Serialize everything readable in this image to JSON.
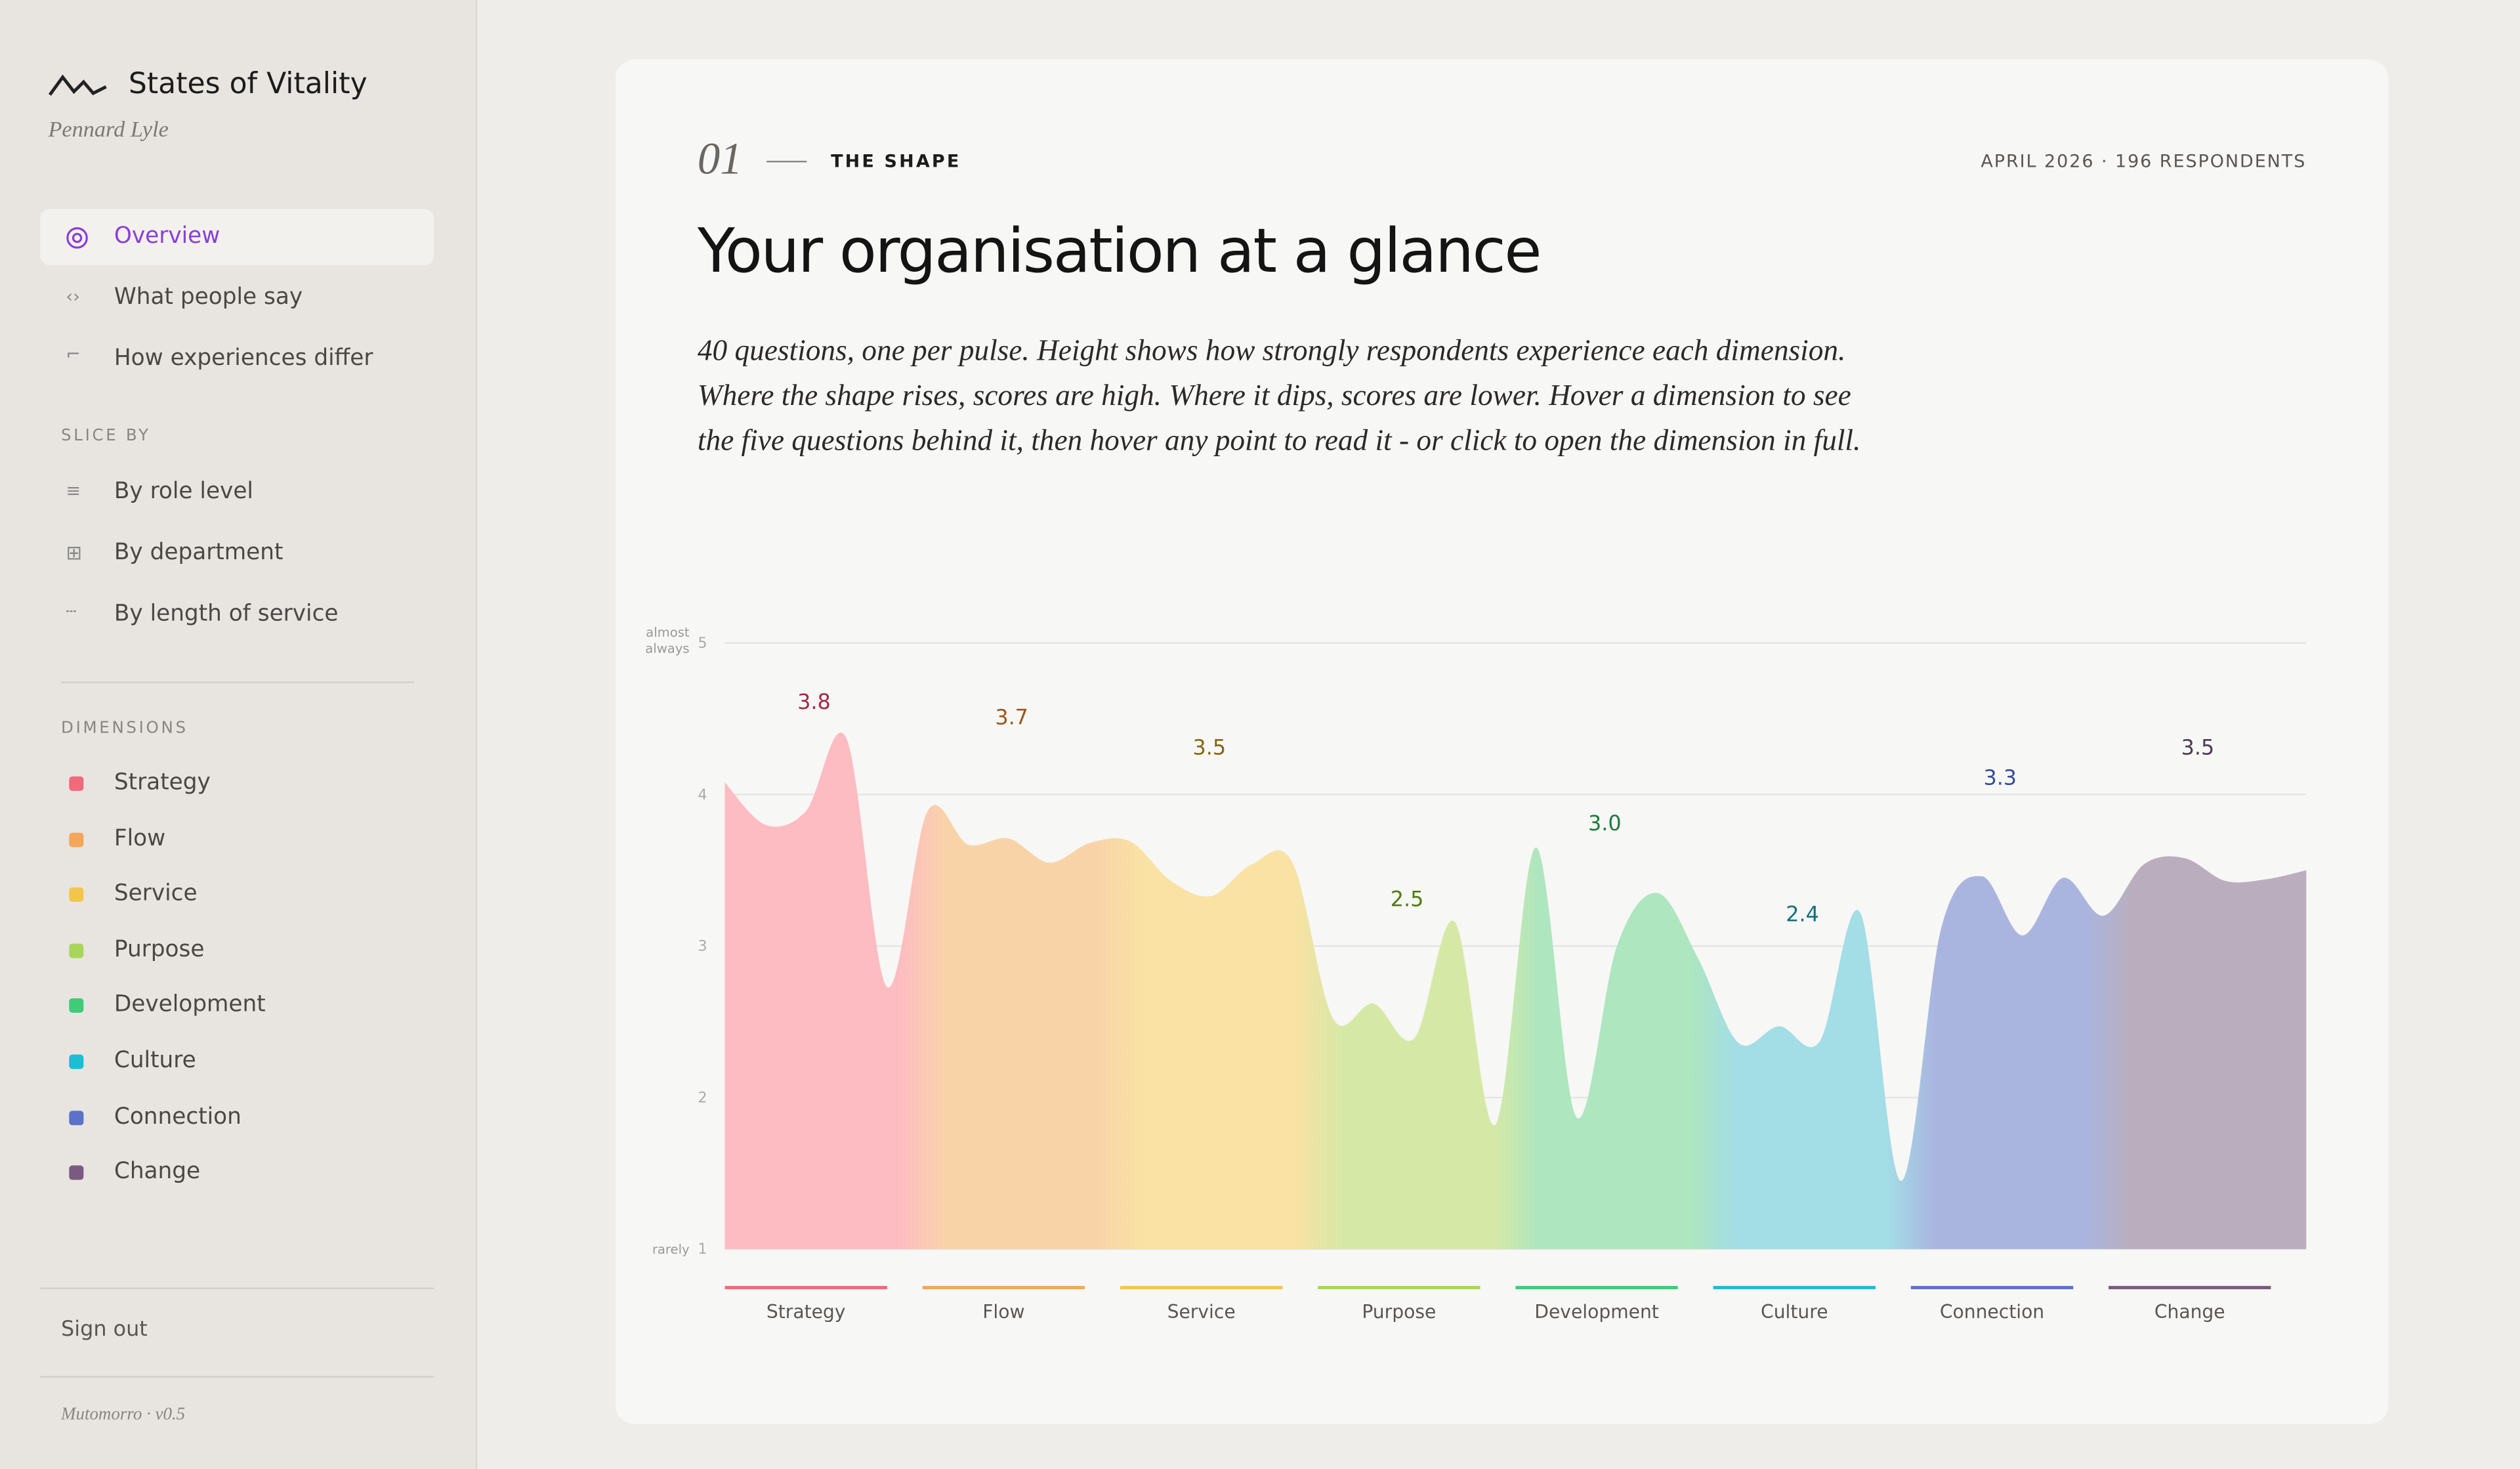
{
  "app": {
    "brand": "States of Vitality",
    "author": "Pennard Lyle",
    "nav": [
      "Overview",
      "What people say",
      "How experiences differ"
    ],
    "slice_header": "SLICE BY",
    "slices": [
      "By role level",
      "By department",
      "By length of service"
    ],
    "dimensions_header": "DIMENSIONS",
    "sign_out": "Sign out",
    "version": "Mutomorro · v0.5"
  },
  "card": {
    "number": "01",
    "kicker": "THE SHAPE",
    "meta": "APRIL 2026 · 196 RESPONDENTS",
    "title": "Your organisation at a glance",
    "description": "40 questions, one per pulse. Height shows how strongly respondents experience each dimension. Where the shape rises, scores are high. Where it dips, scores are lower. Hover a dimension to see the five questions behind it, then hover any point to read it - or click to open the dimension in full."
  },
  "chart_data": {
    "type": "area",
    "ylim": [
      1,
      5
    ],
    "yticks": [
      1,
      2,
      3,
      4,
      5
    ],
    "y_top_label": "almost always",
    "y_bottom_label": "rarely",
    "grid": true,
    "series": [
      {
        "name": "Strategy",
        "color": "#f06a7a",
        "fill": "#fcbcc2",
        "label_color": "#a0294a",
        "values": [
          4.08,
          3.8,
          3.89,
          4.37,
          2.73
        ],
        "average": 3.8,
        "average_label": "3.8"
      },
      {
        "name": "Flow",
        "color": "#f4a65a",
        "fill": "#f9d3a8",
        "label_color": "#9a561a",
        "values": [
          3.89,
          3.67,
          3.71,
          3.55,
          3.68
        ],
        "average": 3.7,
        "average_label": "3.7"
      },
      {
        "name": "Service",
        "color": "#f3c64b",
        "fill": "#f9e2a3",
        "label_color": "#85660f",
        "values": [
          3.69,
          3.43,
          3.33,
          3.54,
          3.55
        ],
        "average": 3.5,
        "average_label": "3.5"
      },
      {
        "name": "Purpose",
        "color": "#a8d65a",
        "fill": "#d6e8a6",
        "label_color": "#4f7a12",
        "values": [
          2.52,
          2.62,
          2.39,
          3.16,
          1.82
        ],
        "average": 2.5,
        "average_label": "2.5"
      },
      {
        "name": "Development",
        "color": "#3fcc78",
        "fill": "#ade6bf",
        "label_color": "#1d7a3a",
        "values": [
          3.65,
          1.87,
          3.0,
          3.35,
          2.92
        ],
        "average": 3,
        "average_label": "3.0"
      },
      {
        "name": "Culture",
        "color": "#1fbcd4",
        "fill": "#a3dde6",
        "label_color": "#117080",
        "values": [
          2.36,
          2.47,
          2.37,
          3.22,
          1.45
        ],
        "average": 2.4,
        "average_label": "2.4"
      },
      {
        "name": "Connection",
        "color": "#5b72c8",
        "fill": "#aab5df",
        "label_color": "#344a9a",
        "values": [
          3.12,
          3.46,
          3.07,
          3.45,
          3.2
        ],
        "average": 3.3,
        "average_label": "3.3"
      },
      {
        "name": "Change",
        "color": "#7a5a80",
        "fill": "#baaebe",
        "label_color": "#4a3a50",
        "values": [
          3.54,
          3.58,
          3.43,
          3.44,
          3.5
        ],
        "average": 3.5,
        "average_label": "3.5"
      }
    ]
  }
}
